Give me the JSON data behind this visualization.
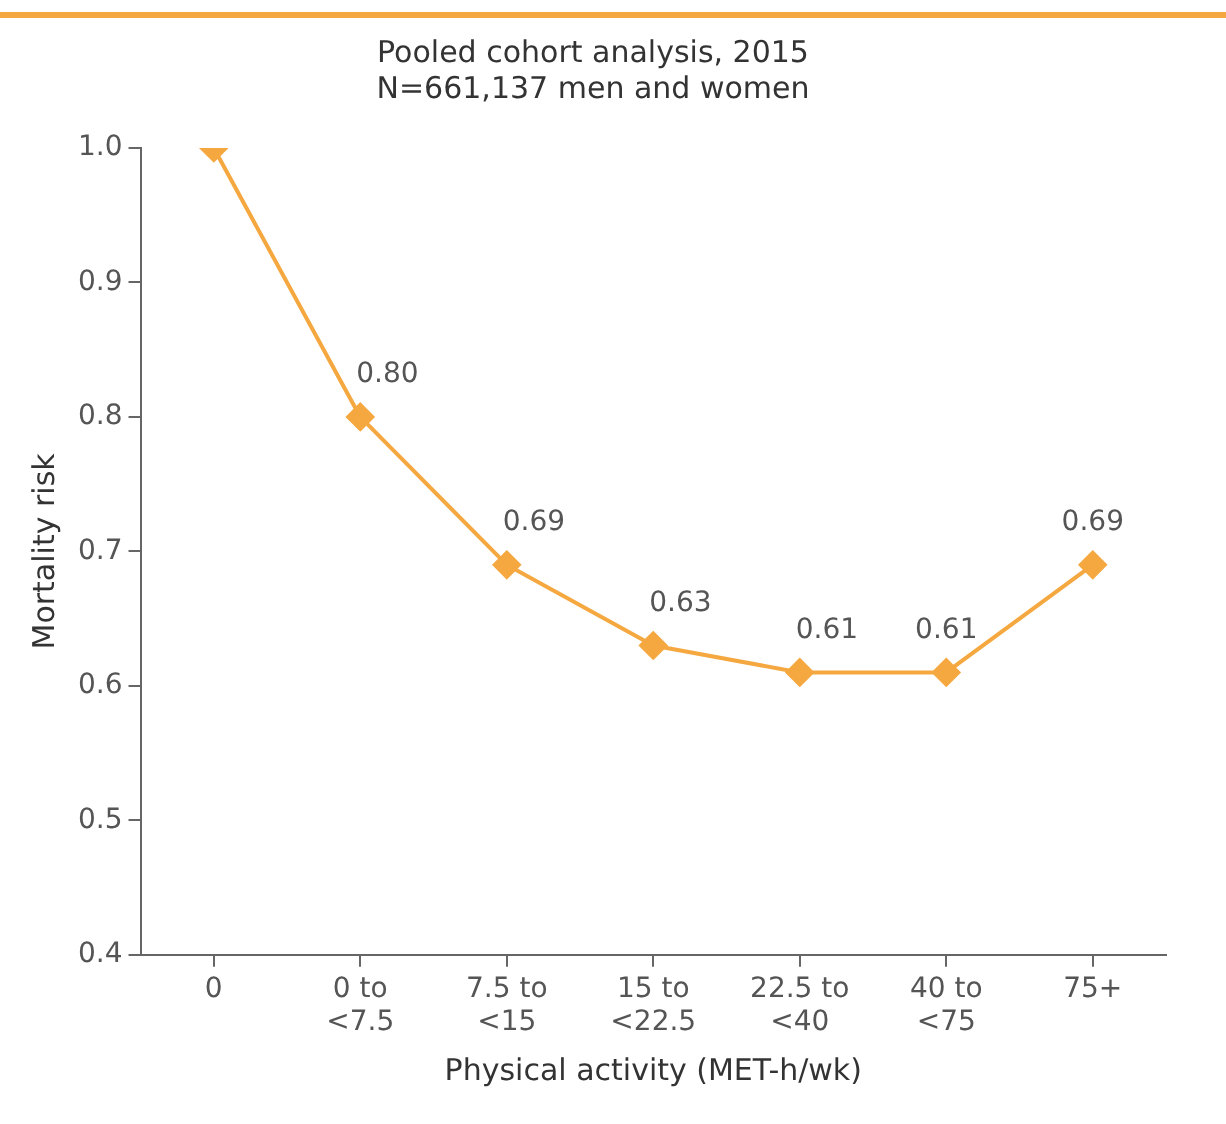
{
  "chart_data": {
    "type": "line",
    "title": "Pooled cohort analysis, 2015\nN=661,137 men and women",
    "xlabel": "Physical activity (MET-h/wk)",
    "ylabel": "Mortality risk",
    "categories": [
      "0",
      "0 to\n<7.5",
      "7.5 to\n<15",
      "15 to\n<22.5",
      "22.5 to\n<40",
      "40 to\n<75",
      "75+"
    ],
    "series": [
      {
        "color": "#f5a840",
        "values": [
          1.0,
          0.8,
          0.69,
          0.63,
          0.61,
          0.61,
          0.69
        ],
        "value_labels": [
          null,
          "0.80",
          "0.69",
          "0.63",
          "0.61",
          "0.61",
          "0.69"
        ]
      }
    ],
    "ylim": [
      0.4,
      1.0
    ],
    "yticks": [
      {
        "value": 0.4,
        "label": "0.4"
      },
      {
        "value": 0.5,
        "label": "0.5"
      },
      {
        "value": 0.6,
        "label": "0.6"
      },
      {
        "value": 0.7,
        "label": "0.7"
      },
      {
        "value": 0.8,
        "label": "0.8"
      },
      {
        "value": 0.9,
        "label": "0.9"
      },
      {
        "value": 1.0,
        "label": "1.0"
      }
    ],
    "grid": false,
    "legend": false,
    "marker": "diamond",
    "line_style": "solid"
  }
}
